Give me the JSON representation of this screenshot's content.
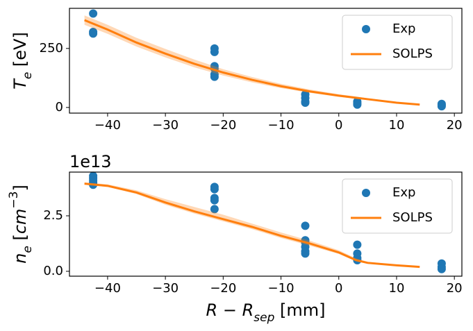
{
  "chart_data": [
    {
      "type": "line",
      "ylabel": [
        {
          "text": "T",
          "style": "italic"
        },
        {
          "text": "e",
          "style": "sub"
        },
        {
          "text": " [eV]"
        }
      ],
      "xlim": [
        -46.6,
        21.3
      ],
      "ylim": [
        -24,
        420
      ],
      "xticks": [
        {
          "value": -40,
          "label": "−40"
        },
        {
          "value": -30,
          "label": "−30"
        },
        {
          "value": -20,
          "label": "−20"
        },
        {
          "value": -10,
          "label": "−10"
        },
        0,
        10,
        20
      ],
      "yticks": [
        0,
        250
      ],
      "legend": "upper right",
      "series": [
        {
          "name": "Exp",
          "type": "scatter",
          "color": "#1f77b4",
          "x": [
            -42.5,
            -42.5,
            -42.5,
            -21.5,
            -21.5,
            -21.5,
            -21.5,
            -21.5,
            -21.5,
            -5.8,
            -5.8,
            -5.8,
            -5.8,
            3.2,
            3.2,
            3.2,
            17.8,
            17.8,
            17.8
          ],
          "values": [
            398,
            320,
            313,
            250,
            235,
            175,
            165,
            140,
            130,
            55,
            40,
            25,
            20,
            25,
            18,
            12,
            15,
            10,
            5
          ]
        },
        {
          "name": "SOLPS",
          "type": "line",
          "color": "#ff7f0e",
          "x": [
            -44,
            -40,
            -35,
            -30,
            -25,
            -20,
            -15,
            -10,
            -5,
            0,
            5,
            10,
            14
          ],
          "values": [
            370,
            330,
            275,
            228,
            185,
            148,
            117,
            90,
            68,
            50,
            35,
            20,
            12
          ],
          "upper": [
            390,
            350,
            295,
            248,
            203,
            162,
            129,
            100,
            76,
            56,
            39,
            23,
            14
          ],
          "lower": [
            350,
            312,
            258,
            212,
            170,
            135,
            106,
            82,
            62,
            45,
            31,
            18,
            10
          ]
        }
      ]
    },
    {
      "type": "line",
      "ylabel": [
        {
          "text": "n",
          "style": "italic"
        },
        {
          "text": "e",
          "style": "sub"
        },
        {
          "text": " ["
        },
        {
          "text": "cm",
          "style": "italic"
        },
        {
          "text": "−3",
          "style": "sup"
        },
        {
          "text": "]"
        }
      ],
      "xlabel": [
        {
          "text": "R",
          "style": "italic"
        },
        {
          "text": " − "
        },
        {
          "text": "R",
          "style": "italic"
        },
        {
          "text": "sep",
          "style": "sub"
        },
        {
          "text": " [mm]"
        }
      ],
      "offset_label": "1e13",
      "xlim": [
        -46.6,
        21.3
      ],
      "ylim": [
        -0.22,
        4.47
      ],
      "xticks": [
        {
          "value": -40,
          "label": "−40"
        },
        {
          "value": -30,
          "label": "−30"
        },
        {
          "value": -20,
          "label": "−20"
        },
        {
          "value": -10,
          "label": "−10"
        },
        0,
        10,
        20
      ],
      "yticks": [
        {
          "value": 0,
          "label": "0.0"
        },
        {
          "value": 2.5,
          "label": "2.5"
        }
      ],
      "legend": "upper right",
      "series": [
        {
          "name": "Exp",
          "type": "scatter",
          "color": "#1f77b4",
          "x": [
            -42.5,
            -42.5,
            -42.5,
            -42.5,
            -42.5,
            -21.5,
            -21.5,
            -21.5,
            -21.5,
            -21.5,
            -5.8,
            -5.8,
            -5.8,
            -5.8,
            -5.8,
            -5.8,
            3.2,
            3.2,
            3.2,
            3.2,
            17.8,
            17.8,
            17.8
          ],
          "values": [
            4.3,
            4.2,
            4.1,
            4.0,
            3.9,
            3.8,
            3.7,
            3.3,
            3.2,
            2.8,
            2.05,
            1.4,
            1.3,
            1.1,
            0.9,
            0.8,
            1.2,
            0.8,
            0.6,
            0.5,
            0.35,
            0.2,
            0.1
          ]
        },
        {
          "name": "SOLPS",
          "type": "line",
          "color": "#ff7f0e",
          "x": [
            -44,
            -40,
            -35,
            -30,
            -25,
            -20,
            -15,
            -10,
            -5,
            0,
            3,
            5,
            10,
            14
          ],
          "values": [
            3.95,
            3.85,
            3.55,
            3.1,
            2.7,
            2.35,
            2.0,
            1.6,
            1.25,
            0.85,
            0.5,
            0.38,
            0.27,
            0.2
          ],
          "upper": [
            4.0,
            3.92,
            3.65,
            3.25,
            2.9,
            2.55,
            2.15,
            1.75,
            1.38,
            0.95,
            0.58,
            0.43,
            0.3,
            0.22
          ],
          "lower": [
            3.9,
            3.8,
            3.48,
            3.0,
            2.6,
            2.25,
            1.9,
            1.5,
            1.15,
            0.78,
            0.45,
            0.34,
            0.24,
            0.18
          ]
        }
      ]
    }
  ]
}
